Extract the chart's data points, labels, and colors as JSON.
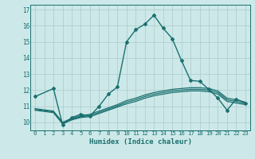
{
  "xlabel": "Humidex (Indice chaleur)",
  "background_color": "#cde8e8",
  "grid_color": "#b0d0d0",
  "line_color": "#1a7070",
  "xlim": [
    -0.5,
    23.5
  ],
  "ylim": [
    9.5,
    17.3
  ],
  "yticks": [
    10,
    11,
    12,
    13,
    14,
    15,
    16,
    17
  ],
  "xticks": [
    0,
    1,
    2,
    3,
    4,
    5,
    6,
    7,
    8,
    9,
    10,
    11,
    12,
    13,
    14,
    15,
    16,
    17,
    18,
    19,
    20,
    21,
    22,
    23
  ],
  "xtick_labels": [
    "0",
    "1",
    "2",
    "3",
    "4",
    "5",
    "6",
    "7",
    "8",
    "9",
    "10",
    "11",
    "12",
    "13",
    "14",
    "15",
    "16",
    "17",
    "18",
    "19",
    "20",
    "21",
    "22",
    "23"
  ],
  "series": [
    {
      "x": [
        0,
        2,
        3,
        4,
        5,
        6,
        7,
        8,
        9,
        10,
        11,
        12,
        13,
        14,
        15,
        16,
        17,
        18,
        19,
        20,
        21,
        22,
        23
      ],
      "y": [
        11.6,
        12.1,
        9.85,
        10.3,
        10.5,
        10.4,
        11.0,
        11.75,
        12.2,
        15.0,
        15.75,
        16.1,
        16.65,
        15.85,
        15.2,
        13.85,
        12.6,
        12.55,
        12.05,
        11.5,
        10.75,
        11.45,
        11.2
      ],
      "marker": "D",
      "markersize": 2.0,
      "linewidth": 1.0
    },
    {
      "x": [
        0,
        2,
        3,
        4,
        5,
        6,
        7,
        8,
        9,
        10,
        11,
        12,
        13,
        14,
        15,
        16,
        17,
        18,
        19,
        20,
        21,
        22,
        23
      ],
      "y": [
        10.75,
        10.6,
        9.9,
        10.15,
        10.3,
        10.35,
        10.55,
        10.75,
        10.95,
        11.15,
        11.3,
        11.5,
        11.65,
        11.75,
        11.85,
        11.9,
        11.95,
        11.95,
        11.9,
        11.75,
        11.3,
        11.2,
        11.1
      ],
      "marker": null,
      "markersize": 0,
      "linewidth": 0.9
    },
    {
      "x": [
        0,
        2,
        3,
        4,
        5,
        6,
        7,
        8,
        9,
        10,
        11,
        12,
        13,
        14,
        15,
        16,
        17,
        18,
        19,
        20,
        21,
        22,
        23
      ],
      "y": [
        10.85,
        10.7,
        10.0,
        10.25,
        10.4,
        10.5,
        10.7,
        10.9,
        11.1,
        11.35,
        11.5,
        11.7,
        11.85,
        11.95,
        12.05,
        12.1,
        12.15,
        12.15,
        12.1,
        11.95,
        11.5,
        11.4,
        11.25
      ],
      "marker": null,
      "markersize": 0,
      "linewidth": 0.9
    },
    {
      "x": [
        0,
        2,
        3,
        4,
        5,
        6,
        7,
        8,
        9,
        10,
        11,
        12,
        13,
        14,
        15,
        16,
        17,
        18,
        19,
        20,
        21,
        22,
        23
      ],
      "y": [
        10.8,
        10.65,
        9.95,
        10.2,
        10.35,
        10.42,
        10.62,
        10.82,
        11.02,
        11.25,
        11.4,
        11.6,
        11.75,
        11.85,
        11.95,
        12.0,
        12.05,
        12.05,
        12.0,
        11.85,
        11.4,
        11.3,
        11.17
      ],
      "marker": null,
      "markersize": 0,
      "linewidth": 0.9
    }
  ]
}
